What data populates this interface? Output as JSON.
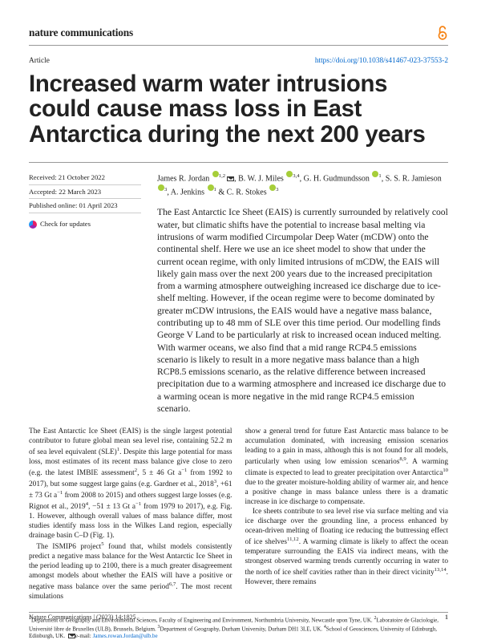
{
  "journal": "nature communications",
  "article_label": "Article",
  "doi_url": "https://doi.org/10.1038/s41467-023-37553-2",
  "title": "Increased warm water intrusions could cause mass loss in East Antarctica during the next 200 years",
  "received": "Received: 21 October 2022",
  "accepted": "Accepted: 22 March 2023",
  "published": "Published online: 01 April 2023",
  "check_updates": "Check for updates",
  "authors_html": "James R. Jordan <span class='orcid'></span><sup>1,2</sup><span class='mail-icon'></span>, B. W. J. Miles <span class='orcid'></span><sup>3,4</sup>, G. H. Gudmundsson <span class='orcid'></span><sup>1</sup>, S. S. R. Jamieson <span class='orcid'></span><sup>3</sup>, A. Jenkins <span class='orcid'></span><sup>1</sup> & C. R. Stokes <span class='orcid'></span><sup>3</sup>",
  "abstract": "The East Antarctic Ice Sheet (EAIS) is currently surrounded by relatively cool water, but climatic shifts have the potential to increase basal melting via intrusions of warm modified Circumpolar Deep Water (mCDW) onto the continental shelf. Here we use an ice sheet model to show that under the current ocean regime, with only limited intrusions of mCDW, the EAIS will likely gain mass over the next 200 years due to the increased precipitation from a warming atmosphere outweighing increased ice discharge due to ice-shelf melting. However, if the ocean regime were to become dominated by greater mCDW intrusions, the EAIS would have a negative mass balance, contributing up to 48 mm of SLE over this time period. Our modelling finds George V Land to be particularly at risk to increased ocean induced melting. With warmer oceans, we also find that a mid range RCP4.5 emissions scenario is likely to result in a more negative mass balance than a high RCP8.5 emissions scenario, as the relative difference between increased precipitation due to a warming atmosphere and increased ice discharge due to a warming ocean is more negative in the mid range RCP4.5 emission scenario.",
  "body_left_p1": "The East Antarctic Ice Sheet (EAIS) is the single largest potential contributor to future global mean sea level rise, containing 52.2 m of sea level equivalent (SLE)<span class='sup-num'>1</span>. Despite this large potential for mass loss, most estimates of its recent mass balance give close to zero (e.g. the latest IMBIE assessment<span class='sup-num'>2</span>, 5 ± 46 Gt a<span class='sup-num'>−1</span> from 1992 to 2017), but some suggest large gains (e.g. Gardner et al., 2018<span class='sup-num'>3</span>, +61 ± 73 Gt a<span class='sup-num'>−1</span> from 2008 to 2015) and others suggest large losses (e.g. Rignot et al., 2019<span class='sup-num'>4</span>, −51 ± 13 Gt a<span class='sup-num'>−1</span> from 1979 to 2017), e.g. Fig. 1. However, although overall values of mass balance differ, most studies identify mass loss in the Wilkes Land region, especially drainage basin C–D (Fig. 1).",
  "body_left_p2": "The ISMIP6 project<span class='sup-num'>5</span> found that, whilst models consistently predict a negative mass balance for the West Antarctic Ice Sheet in the period leading up to 2100, there is a much greater disagreement amongst models about whether the EAIS will have a positive or negative mass balance over the same period<span class='sup-num'>6,7</span>. The most recent simulations",
  "body_right_p1": "show a general trend for future East Antarctic mass balance to be accumulation dominated, with increasing emission scenarios leading to a gain in mass, although this is not found for all models, particularly when using low emission scenarios<span class='sup-num'>8,9</span>. A warming climate is expected to lead to greater precipitation over Antarctica<span class='sup-num'>10</span> due to the greater moisture-holding ability of warmer air, and hence a positive change in mass balance unless there is a dramatic increase in ice discharge to compensate.",
  "body_right_p2": "Ice sheets contribute to sea level rise via surface melting and via ice discharge over the grounding line, a process enhanced by ocean-driven melting of floating ice reducing the buttressing effect of ice shelves<span class='sup-num'>11,12</span>. A warming climate is likely to affect the ocean temperature surrounding the EAIS via indirect means, with the strongest observed warming trends currently occurring in water to the north of ice shelf cavities rather than in their direct vicinity<span class='sup-num'>13,14</span>. However, there remains",
  "affiliations": "<sup>1</sup>Department of Geography and Environmental Sciences, Faculty of Engineering and Environment, Northumbria University, Newcastle upon Tyne, UK. <sup>2</sup>Laboratoire de Glaciologie, Université libre de Bruxelles (ULB), Brussels, Belgium. <sup>3</sup>Department of Geography, Durham University, Durham DH1 3LE, UK. <sup>4</sup>School of Geosciences, University of Edinburgh, Edinburgh, UK. <span class='mail-icon'></span>e-mail: <span class='aff-email'>James.rowan.Jordan@ulb.be</span>",
  "footer_citation": "Nature Communications | (2023) 14:1825",
  "page_number": "1",
  "colors": {
    "link": "#0066cc",
    "orcid": "#a6ce39",
    "oa_orange": "#f68212",
    "text": "#222222",
    "rule": "#999999"
  }
}
